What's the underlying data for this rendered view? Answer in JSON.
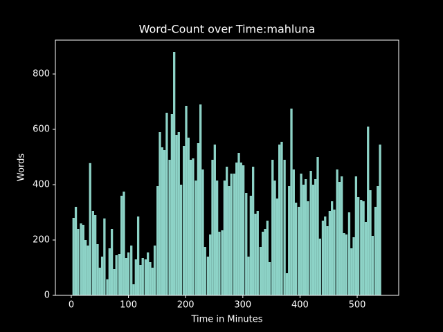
{
  "chart_data": {
    "type": "bar",
    "title": "Word-Count over Time:mahluna",
    "xlabel": "Time in Minutes",
    "ylabel": "Words",
    "color": "#8dd3c7",
    "x": [
      4,
      8,
      12,
      17,
      21,
      25,
      29,
      33,
      38,
      42,
      46,
      50,
      54,
      58,
      63,
      67,
      71,
      75,
      79,
      84,
      88,
      92,
      96,
      100,
      105,
      109,
      113,
      117,
      121,
      125,
      130,
      134,
      138,
      142,
      146,
      151,
      155,
      159,
      163,
      167,
      172,
      176,
      180,
      184,
      188,
      192,
      197,
      201,
      205,
      209,
      213,
      218,
      222,
      226,
      230,
      234,
      239,
      243,
      247,
      251,
      255,
      259,
      264,
      268,
      272,
      276,
      280,
      285,
      289,
      293,
      297,
      301,
      306,
      310,
      314,
      318,
      322,
      326,
      331,
      335,
      339,
      343,
      347,
      352,
      356,
      360,
      364,
      368,
      373,
      377,
      381,
      385,
      389,
      393,
      398,
      402,
      406,
      410,
      414,
      419,
      423,
      427,
      431,
      435,
      440,
      444,
      448,
      452,
      456,
      460,
      465,
      469,
      473,
      477,
      481,
      486,
      490,
      494,
      498,
      502,
      507,
      511,
      515,
      519,
      523,
      527,
      532,
      536,
      540
    ],
    "values": [
      280,
      320,
      240,
      260,
      255,
      200,
      180,
      478,
      305,
      290,
      185,
      100,
      140,
      278,
      58,
      170,
      240,
      95,
      145,
      150,
      360,
      375,
      135,
      155,
      180,
      40,
      130,
      285,
      110,
      135,
      130,
      155,
      120,
      100,
      180,
      395,
      590,
      535,
      525,
      660,
      490,
      655,
      880,
      580,
      590,
      400,
      540,
      685,
      570,
      490,
      495,
      415,
      550,
      690,
      455,
      175,
      140,
      220,
      490,
      545,
      415,
      230,
      235,
      415,
      465,
      395,
      440,
      440,
      480,
      515,
      480,
      470,
      370,
      140,
      360,
      465,
      295,
      305,
      175,
      230,
      240,
      270,
      120,
      490,
      415,
      350,
      545,
      555,
      490,
      80,
      395,
      675,
      455,
      335,
      320,
      440,
      400,
      420,
      340,
      450,
      400,
      420,
      500,
      205,
      270,
      285,
      250,
      305,
      340,
      310,
      455,
      410,
      430,
      225,
      220,
      300,
      170,
      210,
      430,
      355,
      345,
      340,
      265,
      610,
      380,
      215,
      320,
      395,
      545
    ],
    "xlim": [
      -27.8,
      572.6
    ],
    "ylim": [
      0,
      922.5
    ],
    "xticks": [
      0,
      100,
      200,
      300,
      400,
      500
    ],
    "yticks": [
      0,
      200,
      400,
      600,
      800
    ]
  }
}
